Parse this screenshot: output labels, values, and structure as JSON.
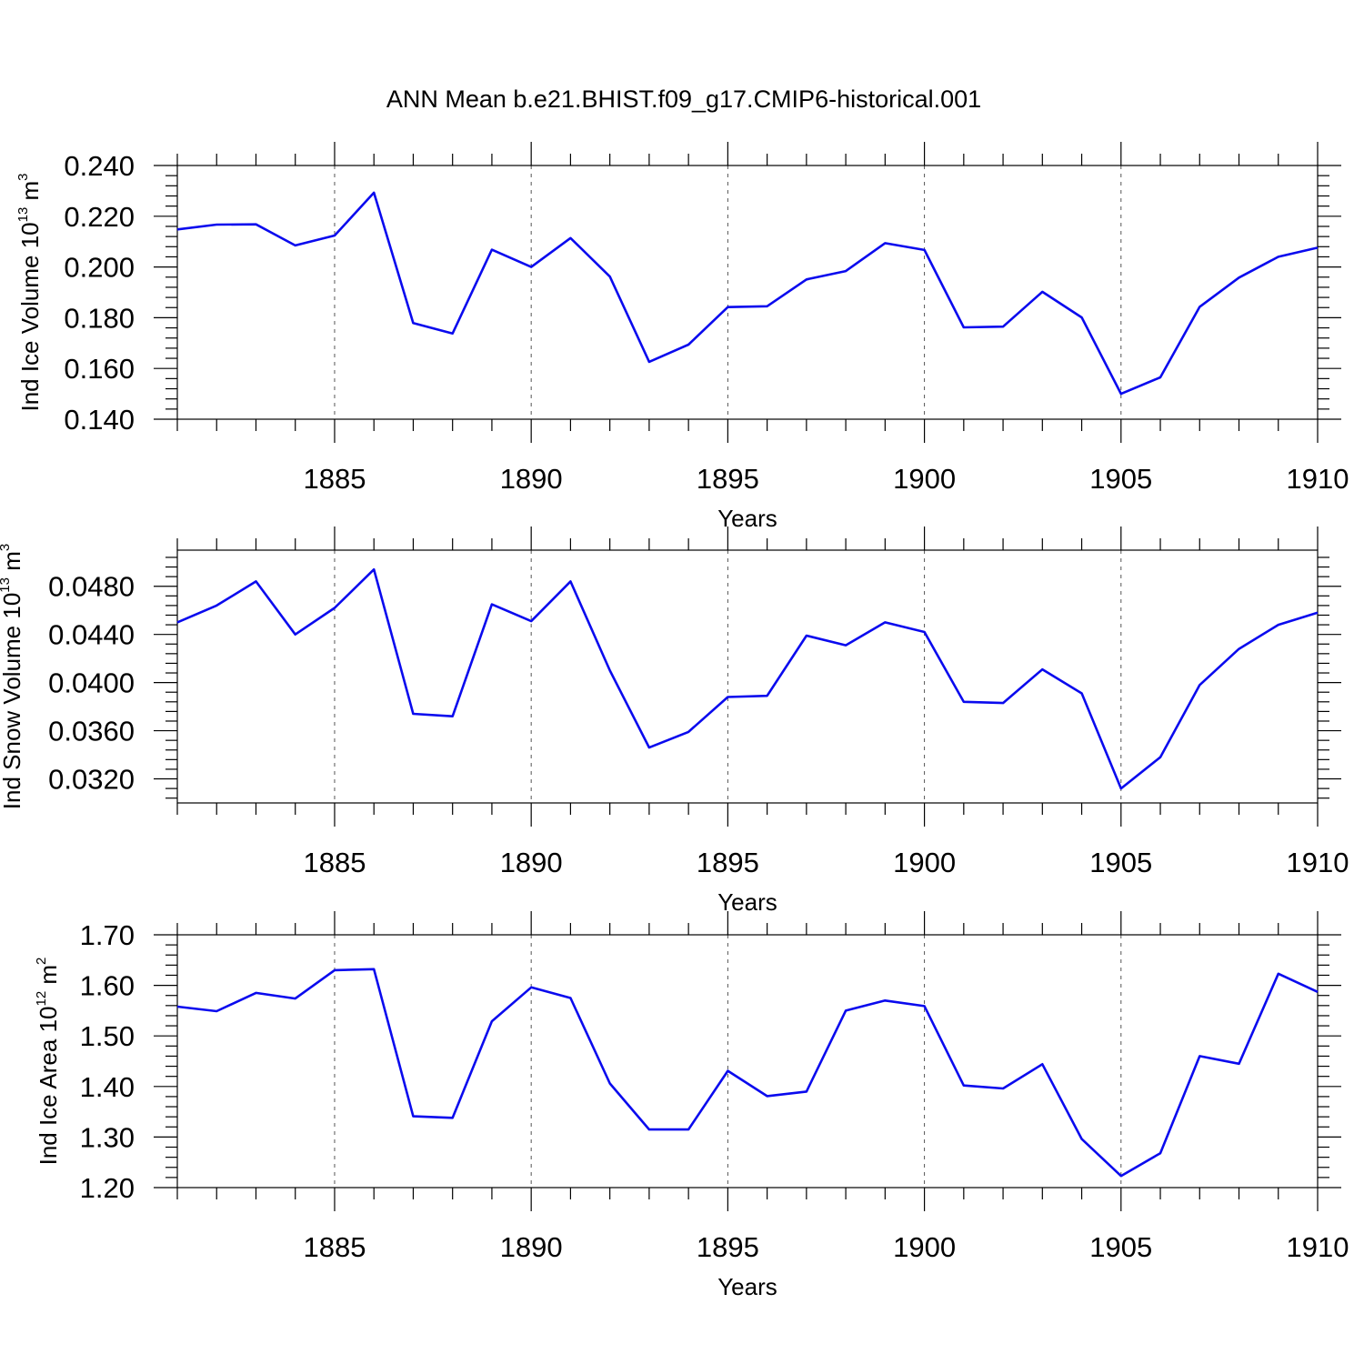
{
  "title": "ANN Mean b.e21.BHIST.f09_g17.CMIP6-historical.001",
  "chart_data": [
    {
      "type": "line",
      "ylabel": "Ind Ice Volume 10",
      "ylabel_exp": "13",
      "ylabel_unit": " m",
      "ylabel_unit_exp": "3",
      "xlabel": "Years",
      "xlim": [
        1881,
        1910
      ],
      "ylim": [
        0.14,
        0.24
      ],
      "yticks": [
        "0.140",
        "0.160",
        "0.180",
        "0.200",
        "0.220",
        "0.240"
      ],
      "xticks": [
        "1885",
        "1890",
        "1895",
        "1900",
        "1905",
        "1910"
      ],
      "grid": "vertical dashed at labeled years",
      "color": "#0a0aee",
      "x": [
        1881,
        1882,
        1883,
        1884,
        1885,
        1886,
        1887,
        1888,
        1889,
        1890,
        1891,
        1892,
        1893,
        1894,
        1895,
        1896,
        1897,
        1898,
        1899,
        1900,
        1901,
        1902,
        1903,
        1904,
        1905,
        1906,
        1907,
        1908,
        1909,
        1910
      ],
      "values": [
        0.2148,
        0.2167,
        0.2168,
        0.2085,
        0.2124,
        0.2293,
        0.1779,
        0.1738,
        0.2068,
        0.2,
        0.2114,
        0.1962,
        0.1626,
        0.1694,
        0.1842,
        0.1845,
        0.1951,
        0.1984,
        0.2094,
        0.2067,
        0.1762,
        0.1765,
        0.1902,
        0.1801,
        0.15,
        0.1565,
        0.1843,
        0.1958,
        0.204,
        0.2076
      ]
    },
    {
      "type": "line",
      "ylabel": "Ind Snow Volume 10",
      "ylabel_exp": "13",
      "ylabel_unit": " m",
      "ylabel_unit_exp": "3",
      "xlabel": "Years",
      "xlim": [
        1881,
        1910
      ],
      "ylim": [
        0.03,
        0.051
      ],
      "yticks": [
        "0.0320",
        "0.0360",
        "0.0400",
        "0.0440",
        "0.0480"
      ],
      "xticks": [
        "1885",
        "1890",
        "1895",
        "1900",
        "1905",
        "1910"
      ],
      "grid": "vertical dashed at labeled years",
      "color": "#0a0aee",
      "x": [
        1881,
        1882,
        1883,
        1884,
        1885,
        1886,
        1887,
        1888,
        1889,
        1890,
        1891,
        1892,
        1893,
        1894,
        1895,
        1896,
        1897,
        1898,
        1899,
        1900,
        1901,
        1902,
        1903,
        1904,
        1905,
        1906,
        1907,
        1908,
        1909,
        1910
      ],
      "values": [
        0.045,
        0.0464,
        0.0484,
        0.044,
        0.0462,
        0.0494,
        0.0374,
        0.0372,
        0.0465,
        0.0451,
        0.0484,
        0.041,
        0.0346,
        0.0359,
        0.0388,
        0.0389,
        0.0439,
        0.0431,
        0.045,
        0.0442,
        0.0384,
        0.0383,
        0.0411,
        0.0391,
        0.0312,
        0.0338,
        0.0398,
        0.0428,
        0.0448,
        0.0458
      ]
    },
    {
      "type": "line",
      "ylabel": "Ind Ice Area 10",
      "ylabel_exp": "12",
      "ylabel_unit": " m",
      "ylabel_unit_exp": "2",
      "xlabel": "Years",
      "xlim": [
        1881,
        1910
      ],
      "ylim": [
        1.2,
        1.7
      ],
      "yticks": [
        "1.20",
        "1.30",
        "1.40",
        "1.50",
        "1.60",
        "1.70"
      ],
      "xticks": [
        "1885",
        "1890",
        "1895",
        "1900",
        "1905",
        "1910"
      ],
      "grid": "vertical dashed at labeled years",
      "color": "#0a0aee",
      "x": [
        1881,
        1882,
        1883,
        1884,
        1885,
        1886,
        1887,
        1888,
        1889,
        1890,
        1891,
        1892,
        1893,
        1894,
        1895,
        1896,
        1897,
        1898,
        1899,
        1900,
        1901,
        1902,
        1903,
        1904,
        1905,
        1906,
        1907,
        1908,
        1909,
        1910
      ],
      "values": [
        1.558,
        1.549,
        1.585,
        1.574,
        1.63,
        1.632,
        1.341,
        1.338,
        1.529,
        1.596,
        1.575,
        1.406,
        1.315,
        1.315,
        1.431,
        1.381,
        1.39,
        1.55,
        1.57,
        1.559,
        1.402,
        1.396,
        1.444,
        1.296,
        1.223,
        1.268,
        1.46,
        1.445,
        1.623,
        1.587
      ]
    }
  ]
}
